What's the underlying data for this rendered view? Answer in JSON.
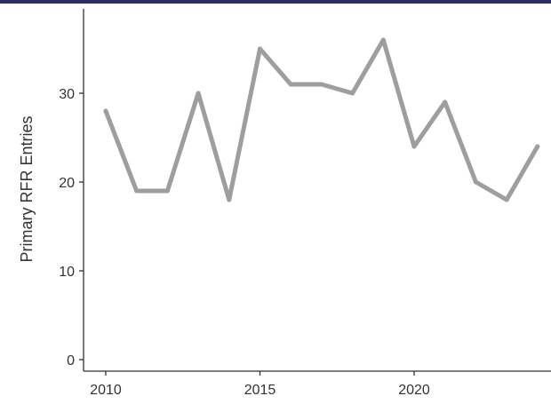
{
  "chart_data": {
    "type": "line",
    "title": "",
    "xlabel": "",
    "ylabel": "Primary RFR Entries",
    "xlim": [
      2010,
      2024
    ],
    "ylim": [
      0,
      38
    ],
    "x_ticks": [
      "2010",
      "2015",
      "2020"
    ],
    "y_ticks": [
      "0",
      "10",
      "20",
      "30"
    ],
    "grid": false,
    "legend": "none",
    "line_color": "#9e9e9e",
    "axis_color": "#333333",
    "accent_color": "#2a2f6b",
    "series": [
      {
        "x": [
          2010,
          2011,
          2012,
          2013,
          2014,
          2015,
          2016,
          2017,
          2018,
          2019,
          2020,
          2021,
          2022,
          2023,
          2024
        ],
        "values": [
          28,
          19,
          19,
          30,
          18,
          35,
          31,
          31,
          30,
          36,
          24,
          29,
          20,
          18,
          24
        ]
      }
    ]
  }
}
